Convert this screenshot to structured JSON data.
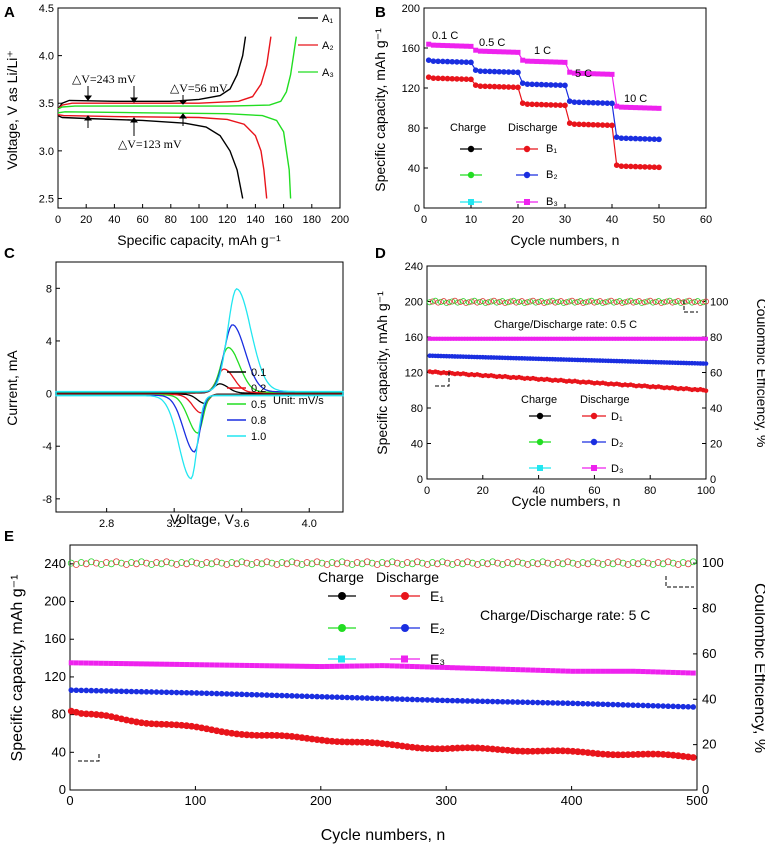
{
  "figure": {
    "colors": {
      "black": "#000000",
      "red": "#e8141b",
      "green": "#22dd22",
      "blue": "#1a2ee0",
      "cyan": "#22e6f0",
      "magenta": "#ee22ee",
      "cycle_green": "#2fd32f",
      "cycle_red": "#e03c3c"
    }
  },
  "chart_data": [
    {
      "panel": "A",
      "type": "line",
      "xlabel": "Specific capacity, mAh g⁻¹",
      "ylabel": "Voltage, V as Li/Li⁺",
      "xlim": [
        0,
        200
      ],
      "ylim": [
        2.4,
        4.5
      ],
      "xticks": [
        "0",
        "20",
        "40",
        "60",
        "80",
        "100",
        "120",
        "140",
        "160",
        "180",
        "200"
      ],
      "yticks": [
        "2.5",
        "3.0",
        "3.5",
        "4.0",
        "4.5"
      ],
      "series": [
        {
          "name": "A₁",
          "color": "#000000",
          "charge": [
            [
              0,
              3.44
            ],
            [
              3,
              3.5
            ],
            [
              8,
              3.53
            ],
            [
              40,
              3.52
            ],
            [
              80,
              3.52
            ],
            [
              100,
              3.54
            ],
            [
              115,
              3.58
            ],
            [
              122,
              3.65
            ],
            [
              127,
              3.8
            ],
            [
              131,
              4.0
            ],
            [
              133,
              4.2
            ]
          ],
          "discharge": [
            [
              0,
              3.37
            ],
            [
              3,
              3.35
            ],
            [
              20,
              3.34
            ],
            [
              60,
              3.32
            ],
            [
              90,
              3.29
            ],
            [
              105,
              3.25
            ],
            [
              115,
              3.16
            ],
            [
              122,
              3.0
            ],
            [
              127,
              2.8
            ],
            [
              131,
              2.5
            ]
          ]
        },
        {
          "name": "A₂",
          "color": "#e8141b",
          "charge": [
            [
              0,
              3.44
            ],
            [
              3,
              3.48
            ],
            [
              10,
              3.5
            ],
            [
              50,
              3.5
            ],
            [
              100,
              3.5
            ],
            [
              128,
              3.52
            ],
            [
              138,
              3.57
            ],
            [
              144,
              3.7
            ],
            [
              148,
              3.9
            ],
            [
              151,
              4.2
            ]
          ],
          "discharge": [
            [
              0,
              3.38
            ],
            [
              4,
              3.37
            ],
            [
              40,
              3.36
            ],
            [
              100,
              3.35
            ],
            [
              120,
              3.33
            ],
            [
              132,
              3.28
            ],
            [
              140,
              3.16
            ],
            [
              144,
              3.0
            ],
            [
              146,
              2.8
            ],
            [
              148,
              2.5
            ]
          ]
        },
        {
          "name": "A₃",
          "color": "#22dd22",
          "charge": [
            [
              0,
              3.44
            ],
            [
              3,
              3.46
            ],
            [
              12,
              3.47
            ],
            [
              60,
              3.47
            ],
            [
              120,
              3.47
            ],
            [
              150,
              3.48
            ],
            [
              158,
              3.52
            ],
            [
              162,
              3.62
            ],
            [
              165,
              3.8
            ],
            [
              167,
              4.0
            ],
            [
              169,
              4.2
            ]
          ],
          "discharge": [
            [
              0,
              3.4
            ],
            [
              5,
              3.41
            ],
            [
              60,
              3.4
            ],
            [
              120,
              3.39
            ],
            [
              145,
              3.37
            ],
            [
              155,
              3.32
            ],
            [
              160,
              3.2
            ],
            [
              162,
              3.0
            ],
            [
              164,
              2.8
            ],
            [
              165,
              2.5
            ]
          ]
        }
      ],
      "annotations": [
        "△V=243 mV",
        "△V=56 mV",
        "△V=123 mV"
      ]
    },
    {
      "panel": "B",
      "type": "scatter",
      "xlabel": "Cycle numbers, n",
      "ylabel": "Specific capacity, mAh g⁻¹",
      "xlim": [
        0,
        60
      ],
      "ylim": [
        0,
        200
      ],
      "xticks": [
        "0",
        "10",
        "20",
        "30",
        "40",
        "50",
        "60"
      ],
      "yticks": [
        "0",
        "40",
        "80",
        "120",
        "160",
        "200"
      ],
      "rate_labels": [
        "0.1 C",
        "0.5 C",
        "1 C",
        "5 C",
        "10 C"
      ],
      "segments": [
        {
          "B1": 130,
          "B2": 147,
          "B3": 163
        },
        {
          "B1": 122,
          "B2": 137,
          "B3": 157
        },
        {
          "B1": 104,
          "B2": 124,
          "B3": 147
        },
        {
          "B1": 84,
          "B2": 106,
          "B3": 135
        },
        {
          "B1": 42,
          "B2": 70,
          "B3": 101
        }
      ],
      "legend": {
        "charge_label": "Charge",
        "discharge_label": "Discharge",
        "entries": [
          "B₁",
          "B₂",
          "B₃"
        ]
      }
    },
    {
      "panel": "C",
      "type": "line",
      "xlabel": "Voltage, V",
      "ylabel": "Current, mA",
      "xlim": [
        2.5,
        4.2
      ],
      "ylim": [
        -9,
        10
      ],
      "xticks": [
        "2.8",
        "3.2",
        "3.6",
        "4.0"
      ],
      "yticks": [
        "-8",
        "-4",
        "0",
        "4",
        "8"
      ],
      "series": [
        {
          "name": "0.1",
          "color": "#000000",
          "peak": 0.7,
          "trough": -0.7
        },
        {
          "name": "0.2",
          "color": "#e8141b",
          "peak": 1.8,
          "trough": -1.4
        },
        {
          "name": "0.5",
          "color": "#22dd22",
          "peak": 3.4,
          "trough": -2.9
        },
        {
          "name": "0.8",
          "color": "#1a2ee0",
          "peak": 5.1,
          "trough": -4.3
        },
        {
          "name": "1.0",
          "color": "#22e6f0",
          "peak": 7.8,
          "trough": -6.3
        }
      ],
      "unit_label": "Unit: mV/s"
    },
    {
      "panel": "D",
      "type": "scatter",
      "xlabel": "Cycle numbers, n",
      "ylabel": "Specific capacity, mAh g⁻¹",
      "y2label": "Coulombic Efficiency, %",
      "xlim": [
        0,
        100
      ],
      "ylim": [
        0,
        240
      ],
      "y2lim": [
        0,
        120
      ],
      "xticks": [
        "0",
        "20",
        "40",
        "60",
        "80",
        "100"
      ],
      "yticks": [
        "0",
        "40",
        "80",
        "120",
        "160",
        "200",
        "240"
      ],
      "y2ticks": [
        "0",
        "20",
        "40",
        "60",
        "80",
        "100"
      ],
      "series": [
        {
          "name": "D₁",
          "start": 121,
          "end": 100
        },
        {
          "name": "D₂",
          "start": 139,
          "end": 130
        },
        {
          "name": "D₃",
          "start": 158,
          "end": 158
        }
      ],
      "efficiency": 100,
      "rate_text": "Charge/Discharge rate: 0.5 C",
      "legend": {
        "charge_label": "Charge",
        "discharge_label": "Discharge"
      }
    },
    {
      "panel": "E",
      "type": "scatter",
      "xlabel": "Cycle numbers, n",
      "ylabel": "Specific capacity, mAh g⁻¹",
      "y2label": "Coulombic Efficiency, %",
      "xlim": [
        0,
        500
      ],
      "ylim": [
        0,
        260
      ],
      "y2lim": [
        0,
        108
      ],
      "xticks": [
        "0",
        "100",
        "200",
        "300",
        "400",
        "500"
      ],
      "yticks": [
        "0",
        "40",
        "80",
        "120",
        "160",
        "200",
        "240"
      ],
      "y2ticks": [
        "0",
        "20",
        "40",
        "60",
        "80",
        "100"
      ],
      "series": [
        {
          "name": "E₁",
          "points": [
            [
              0,
              84
            ],
            [
              10,
              80
            ],
            [
              30,
              78
            ],
            [
              60,
              72
            ],
            [
              100,
              66
            ],
            [
              150,
              58
            ],
            [
              200,
              54
            ],
            [
              250,
              48
            ],
            [
              300,
              44
            ],
            [
              350,
              43
            ],
            [
              400,
              40
            ],
            [
              450,
              38
            ],
            [
              500,
              35
            ]
          ]
        },
        {
          "name": "E₂",
          "points": [
            [
              0,
              106
            ],
            [
              100,
              103
            ],
            [
              200,
              99
            ],
            [
              300,
              95
            ],
            [
              400,
              92
            ],
            [
              500,
              88
            ]
          ]
        },
        {
          "name": "E₃",
          "points": [
            [
              0,
              135
            ],
            [
              100,
              133
            ],
            [
              200,
              131
            ],
            [
              250,
              132
            ],
            [
              300,
              130
            ],
            [
              350,
              128
            ],
            [
              400,
              126
            ],
            [
              450,
              126
            ],
            [
              500,
              124
            ]
          ]
        }
      ],
      "efficiency": 100,
      "rate_text": "Charge/Discharge rate: 5 C",
      "legend": {
        "charge_label": "Charge",
        "discharge_label": "Discharge"
      }
    }
  ]
}
